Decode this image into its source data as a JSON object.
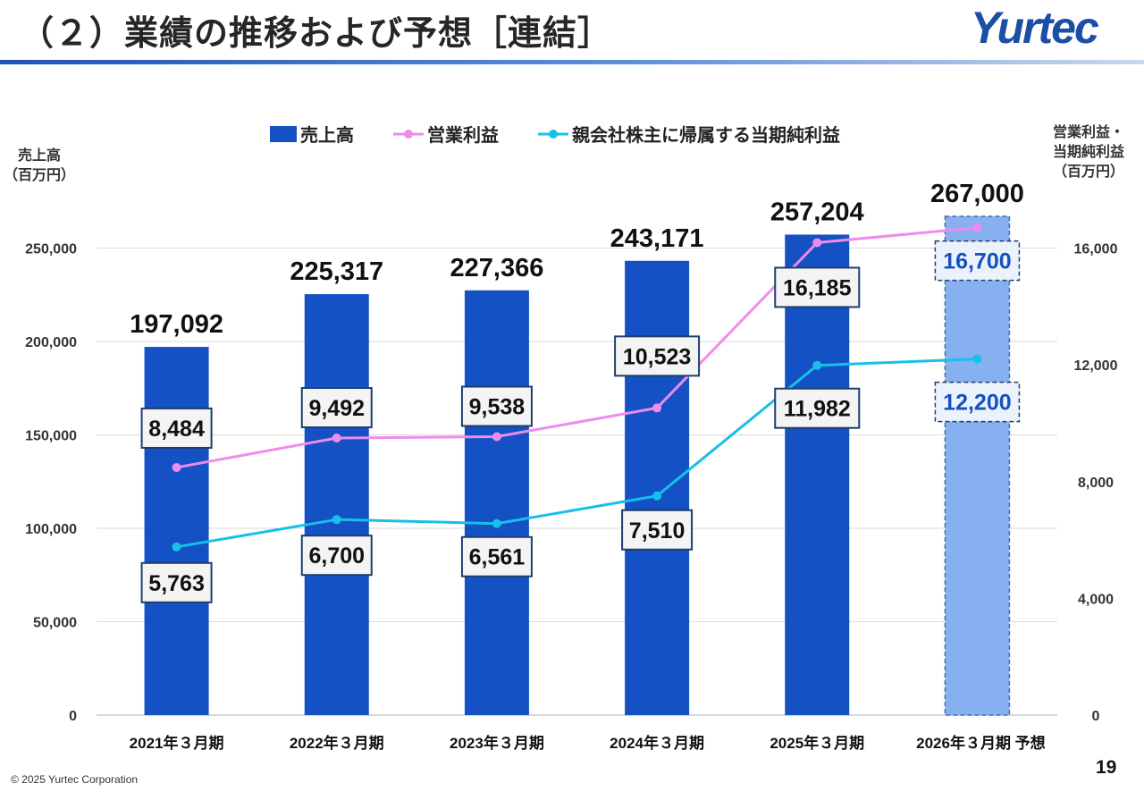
{
  "header": {
    "title": "（２）業績の推移および予想［連結］",
    "logo_text": "Yurtec"
  },
  "footer": {
    "copyright": "© 2025 Yurtec Corporation",
    "page_number": "19"
  },
  "colors": {
    "bar": "#1351c4",
    "bar_forecast": "#86b0f0",
    "operating_profit_line": "#ee8bef",
    "net_profit_line": "#17c0ea",
    "forecast_label": "#1351c4"
  },
  "chart_data": {
    "type": "bar",
    "categories": [
      "2021年３月期",
      "2022年３月期",
      "2023年３月期",
      "2024年３月期",
      "2025年３月期",
      "2026年３月期 予想"
    ],
    "forecast_index": 5,
    "legend": [
      "売上高",
      "営業利益",
      "親会社株主に帰属する当期純利益"
    ],
    "y_left": {
      "label_line1": "売上高",
      "label_line2": "（百万円）",
      "min": 0,
      "max": 300000,
      "ticks": [
        0,
        50000,
        100000,
        150000,
        200000,
        250000
      ],
      "tick_labels": [
        "0",
        "50,000",
        "100,000",
        "150,000",
        "200,000",
        "250,000"
      ]
    },
    "y_right": {
      "label_line1": "営業利益・",
      "label_line2": "当期純利益",
      "label_line3": "（百万円）",
      "min": 0,
      "max": 19200,
      "ticks": [
        0,
        4000,
        8000,
        12000,
        16000
      ],
      "tick_labels": [
        "0",
        "4,000",
        "8,000",
        "12,000",
        "16,000"
      ]
    },
    "series": [
      {
        "name": "売上高",
        "type": "bar",
        "axis": "left",
        "values": [
          197092,
          225317,
          227366,
          243171,
          257204,
          267000
        ],
        "labels": [
          "197,092",
          "225,317",
          "227,366",
          "243,171",
          "257,204",
          "267,000"
        ]
      },
      {
        "name": "営業利益",
        "type": "line",
        "axis": "right",
        "values": [
          8484,
          9492,
          9538,
          10523,
          16185,
          16700
        ],
        "labels": [
          "8,484",
          "9,492",
          "9,538",
          "10,523",
          "16,185",
          "16,700"
        ]
      },
      {
        "name": "親会社株主に帰属する当期純利益",
        "type": "line",
        "axis": "right",
        "values": [
          5763,
          6700,
          6561,
          7510,
          11982,
          12200
        ],
        "labels": [
          "5,763",
          "6,700",
          "6,561",
          "7,510",
          "11,982",
          "12,200"
        ]
      }
    ]
  }
}
